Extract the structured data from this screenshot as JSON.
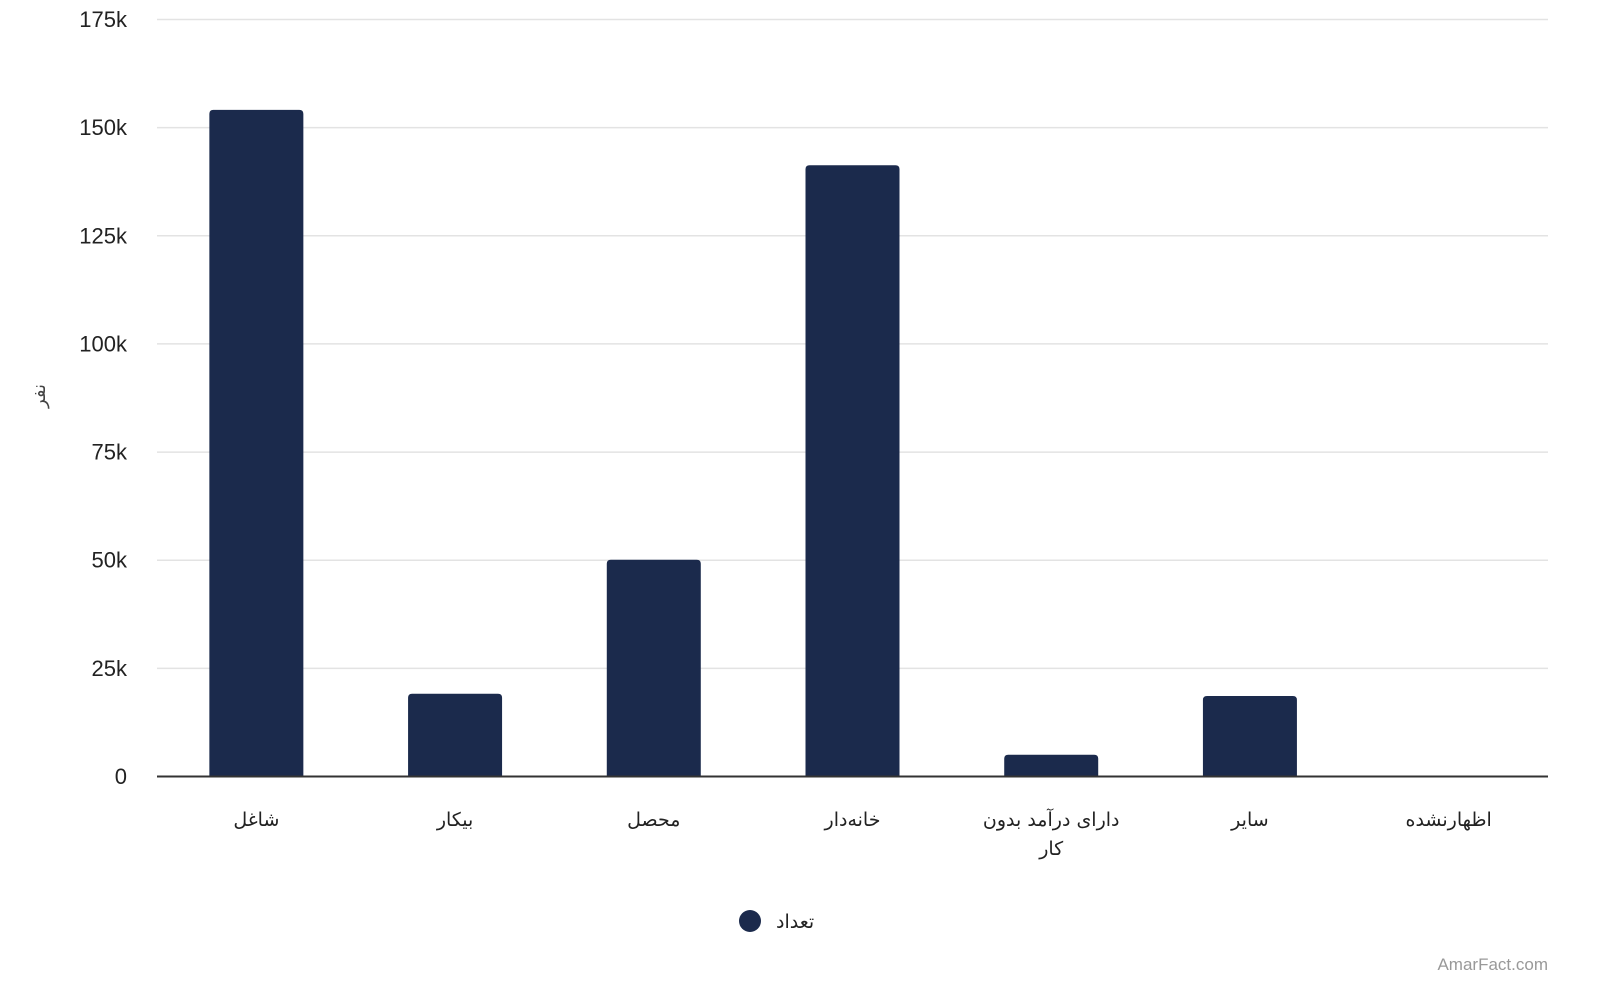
{
  "chart_data": {
    "type": "bar",
    "categories": [
      "شاغل",
      "بیکار",
      "محصل",
      "خانه‌دار",
      "دارای درآمد بدون کار",
      "سایر",
      "اظهارنشده"
    ],
    "category_lines": [
      [
        "شاغل"
      ],
      [
        "بیکار"
      ],
      [
        "محصل"
      ],
      [
        "خانه‌دار"
      ],
      [
        "دارای درآمد بدون",
        "کار"
      ],
      [
        "سایر"
      ],
      [
        "اظهارنشده"
      ]
    ],
    "series": [
      {
        "name": "تعداد",
        "values": [
          154000,
          19000,
          50000,
          141200,
          4900,
          18500,
          0
        ],
        "color": "#1b2a4c"
      }
    ],
    "ylabel": "نفر",
    "xlabel": "",
    "ylim": [
      0,
      175000
    ],
    "yticks": [
      0,
      25000,
      50000,
      75000,
      100000,
      125000,
      150000,
      175000
    ],
    "ytick_labels": [
      "0",
      "25k",
      "50k",
      "75k",
      "100k",
      "125k",
      "150k",
      "175k"
    ],
    "grid": true,
    "legend": "bottom-center"
  },
  "credit": "AmarFact.com"
}
